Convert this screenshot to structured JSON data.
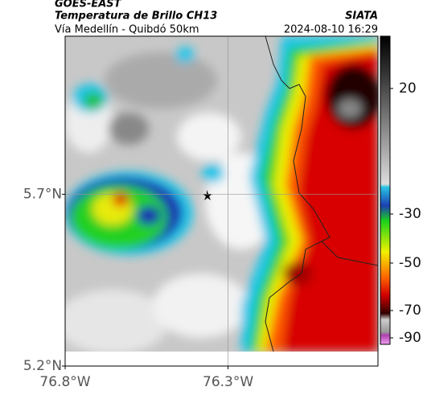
{
  "header": {
    "satellite": "GOES-EAST",
    "title": "Temperatura de Brillo CH13",
    "source": "SIATA",
    "route": "Vía Medellín - Quibdó 50km",
    "datetime": "2024-08-10 16:29"
  },
  "map": {
    "xlim": [
      -76.8,
      -75.84
    ],
    "ylim": [
      5.2,
      6.16
    ],
    "xticks": [
      {
        "value": -76.8,
        "label": "76.8°W"
      },
      {
        "value": -76.3,
        "label": "76.3°W"
      }
    ],
    "yticks": [
      {
        "value": 5.2,
        "label": "5.2°N"
      },
      {
        "value": 5.7,
        "label": "5.7°N"
      }
    ],
    "grid": true
  },
  "colorbar": {
    "ticks": [
      20,
      -30,
      -50,
      -70,
      -90
    ]
  }
}
